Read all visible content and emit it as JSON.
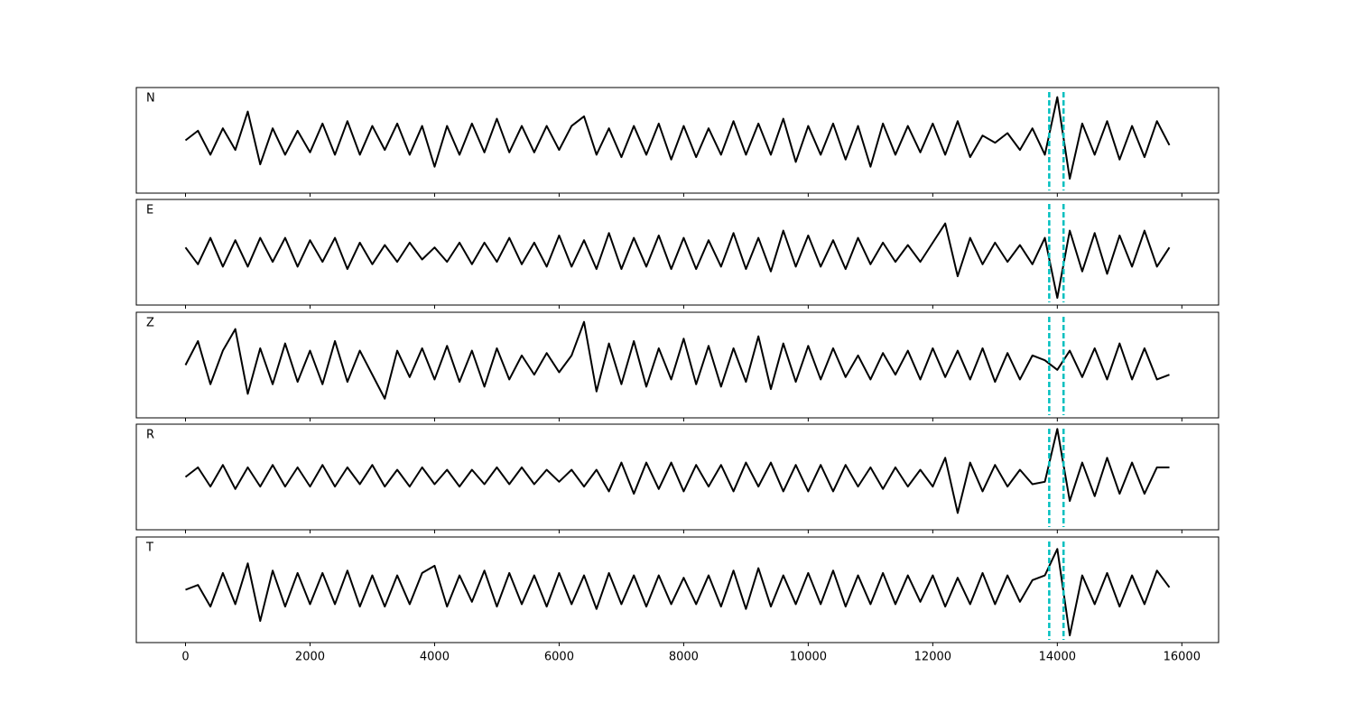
{
  "chart_data": {
    "type": "line",
    "x": [
      0,
      200,
      400,
      600,
      800,
      1000,
      1200,
      1400,
      1600,
      1800,
      2000,
      2200,
      2400,
      2600,
      2800,
      3000,
      3200,
      3400,
      3600,
      3800,
      4000,
      4200,
      4400,
      4600,
      4800,
      5000,
      5200,
      5400,
      5600,
      5800,
      6000,
      6200,
      6400,
      6600,
      6800,
      7000,
      7200,
      7400,
      7600,
      7800,
      8000,
      8200,
      8400,
      8600,
      8800,
      9000,
      9200,
      9400,
      9600,
      9800,
      10000,
      10200,
      10400,
      10600,
      10800,
      11000,
      11200,
      11400,
      11600,
      11800,
      12000,
      12200,
      12400,
      12600,
      12800,
      13000,
      13200,
      13400,
      13600,
      13800,
      14000,
      14200,
      14400,
      14600,
      14800,
      15000,
      15200,
      15400,
      15600,
      15800
    ],
    "series": [
      {
        "name": "N",
        "color": "#000000",
        "values": [
          0,
          0.2,
          -0.3,
          0.25,
          -0.2,
          0.6,
          -0.5,
          0.25,
          -0.3,
          0.2,
          -0.25,
          0.35,
          -0.3,
          0.4,
          -0.3,
          0.3,
          -0.2,
          0.35,
          -0.3,
          0.3,
          -0.55,
          0.3,
          -0.3,
          0.35,
          -0.25,
          0.45,
          -0.25,
          0.3,
          -0.25,
          0.3,
          -0.2,
          0.3,
          0.5,
          -0.3,
          0.25,
          -0.35,
          0.3,
          -0.3,
          0.35,
          -0.4,
          0.3,
          -0.35,
          0.25,
          -0.3,
          0.4,
          -0.3,
          0.35,
          -0.3,
          0.45,
          -0.45,
          0.3,
          -0.3,
          0.35,
          -0.4,
          0.3,
          -0.55,
          0.35,
          -0.3,
          0.3,
          -0.25,
          0.35,
          -0.3,
          0.4,
          -0.35,
          0.1,
          -0.05,
          0.15,
          -0.2,
          0.25,
          -0.3,
          0.9,
          -0.8,
          0.35,
          -0.3,
          0.4,
          -0.4,
          0.3,
          -0.35,
          0.4,
          -0.1
        ]
      },
      {
        "name": "E",
        "color": "#000000",
        "values": [
          0.1,
          -0.25,
          0.3,
          -0.3,
          0.25,
          -0.3,
          0.3,
          -0.2,
          0.3,
          -0.3,
          0.25,
          -0.2,
          0.3,
          -0.35,
          0.2,
          -0.25,
          0.15,
          -0.2,
          0.2,
          -0.15,
          0.1,
          -0.2,
          0.2,
          -0.25,
          0.2,
          -0.2,
          0.3,
          -0.25,
          0.2,
          -0.3,
          0.35,
          -0.3,
          0.25,
          -0.35,
          0.4,
          -0.35,
          0.3,
          -0.3,
          0.35,
          -0.35,
          0.3,
          -0.35,
          0.25,
          -0.3,
          0.4,
          -0.35,
          0.3,
          -0.4,
          0.45,
          -0.3,
          0.35,
          -0.3,
          0.25,
          -0.35,
          0.3,
          -0.25,
          0.2,
          -0.2,
          0.15,
          -0.2,
          0.2,
          0.6,
          -0.5,
          0.3,
          -0.25,
          0.2,
          -0.2,
          0.15,
          -0.25,
          0.3,
          -0.95,
          0.45,
          -0.4,
          0.4,
          -0.45,
          0.35,
          -0.3,
          0.45,
          -0.3,
          0.1
        ]
      },
      {
        "name": "Z",
        "color": "#000000",
        "values": [
          0,
          0.5,
          -0.4,
          0.3,
          0.75,
          -0.6,
          0.35,
          -0.4,
          0.45,
          -0.35,
          0.3,
          -0.4,
          0.5,
          -0.35,
          0.3,
          -0.2,
          -0.7,
          0.3,
          -0.25,
          0.35,
          -0.3,
          0.4,
          -0.35,
          0.3,
          -0.45,
          0.35,
          -0.3,
          0.2,
          -0.2,
          0.25,
          -0.15,
          0.2,
          0.9,
          -0.55,
          0.45,
          -0.4,
          0.5,
          -0.45,
          0.35,
          -0.3,
          0.55,
          -0.4,
          0.4,
          -0.45,
          0.35,
          -0.35,
          0.6,
          -0.5,
          0.45,
          -0.35,
          0.4,
          -0.3,
          0.35,
          -0.25,
          0.2,
          -0.3,
          0.25,
          -0.2,
          0.3,
          -0.3,
          0.35,
          -0.25,
          0.3,
          -0.3,
          0.35,
          -0.35,
          0.25,
          -0.3,
          0.2,
          0.1,
          -0.1,
          0.3,
          -0.25,
          0.35,
          -0.3,
          0.45,
          -0.3,
          0.35,
          -0.3,
          -0.2
        ]
      },
      {
        "name": "R",
        "color": "#000000",
        "values": [
          0,
          0.2,
          -0.2,
          0.25,
          -0.25,
          0.2,
          -0.2,
          0.25,
          -0.2,
          0.2,
          -0.2,
          0.25,
          -0.2,
          0.2,
          -0.15,
          0.25,
          -0.2,
          0.15,
          -0.2,
          0.2,
          -0.15,
          0.15,
          -0.2,
          0.15,
          -0.15,
          0.2,
          -0.15,
          0.2,
          -0.15,
          0.15,
          -0.1,
          0.15,
          -0.2,
          0.15,
          -0.3,
          0.3,
          -0.35,
          0.3,
          -0.25,
          0.3,
          -0.3,
          0.25,
          -0.2,
          0.25,
          -0.3,
          0.3,
          -0.2,
          0.3,
          -0.3,
          0.25,
          -0.3,
          0.25,
          -0.3,
          0.25,
          -0.2,
          0.2,
          -0.25,
          0.2,
          -0.2,
          0.15,
          -0.2,
          0.4,
          -0.75,
          0.3,
          -0.3,
          0.25,
          -0.2,
          0.15,
          -0.15,
          -0.1,
          1.0,
          -0.5,
          0.3,
          -0.4,
          0.4,
          -0.35,
          0.3,
          -0.35,
          0.2,
          0.2
        ]
      },
      {
        "name": "T",
        "color": "#000000",
        "values": [
          0,
          0.1,
          -0.35,
          0.35,
          -0.3,
          0.55,
          -0.65,
          0.4,
          -0.35,
          0.35,
          -0.3,
          0.35,
          -0.3,
          0.4,
          -0.35,
          0.3,
          -0.35,
          0.3,
          -0.3,
          0.35,
          0.5,
          -0.35,
          0.3,
          -0.25,
          0.4,
          -0.35,
          0.35,
          -0.3,
          0.3,
          -0.35,
          0.35,
          -0.3,
          0.3,
          -0.4,
          0.35,
          -0.3,
          0.3,
          -0.35,
          0.3,
          -0.3,
          0.25,
          -0.3,
          0.3,
          -0.35,
          0.4,
          -0.4,
          0.45,
          -0.35,
          0.3,
          -0.3,
          0.35,
          -0.3,
          0.4,
          -0.35,
          0.3,
          -0.3,
          0.35,
          -0.3,
          0.3,
          -0.25,
          0.3,
          -0.35,
          0.25,
          -0.3,
          0.35,
          -0.3,
          0.3,
          -0.25,
          0.2,
          0.3,
          0.85,
          -0.95,
          0.3,
          -0.3,
          0.35,
          -0.35,
          0.3,
          -0.3,
          0.4,
          0.05
        ]
      }
    ],
    "xlim": [
      -790,
      16590
    ],
    "xticks": [
      0,
      2000,
      4000,
      6000,
      8000,
      10000,
      12000,
      14000,
      16000
    ],
    "ylim": [
      -1.1,
      1.1
    ],
    "markers": {
      "color": "#00bfbf",
      "x": [
        13870,
        14100
      ]
    }
  }
}
